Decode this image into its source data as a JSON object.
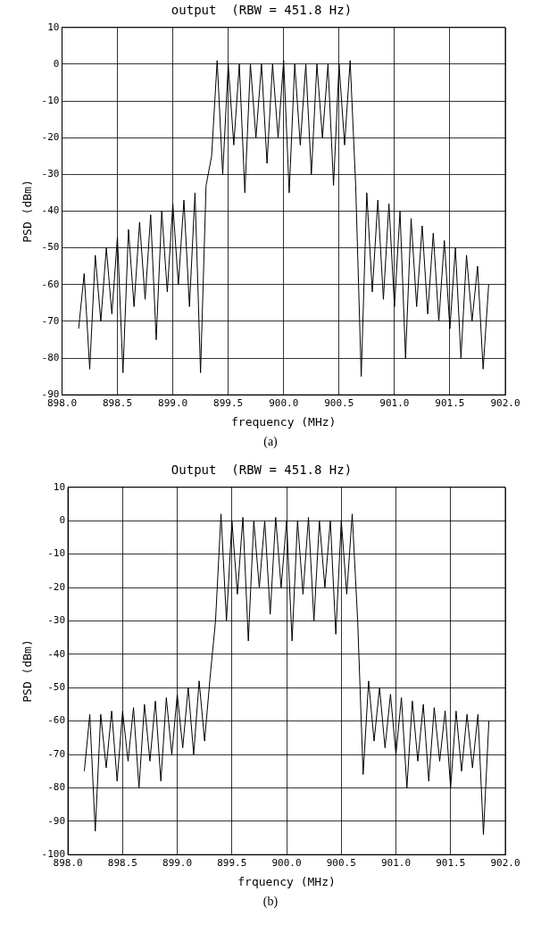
{
  "chart_data": [
    {
      "type": "line",
      "title": "output  (RBW = 451.8 Hz)",
      "xlabel": "frequency (MHz)",
      "ylabel": "PSD (dBm)",
      "annotations": [
        "(a)"
      ],
      "x": [
        898.15,
        898.2,
        898.25,
        898.3,
        898.35,
        898.4,
        898.45,
        898.5,
        898.55,
        898.6,
        898.65,
        898.7,
        898.75,
        898.8,
        898.85,
        898.9,
        898.95,
        899.0,
        899.05,
        899.1,
        899.15,
        899.2,
        899.25,
        899.3,
        899.35,
        899.4,
        899.45,
        899.5,
        899.55,
        899.6,
        899.65,
        899.7,
        899.75,
        899.8,
        899.85,
        899.9,
        899.95,
        900.0,
        900.05,
        900.1,
        900.15,
        900.2,
        900.25,
        900.3,
        900.35,
        900.4,
        900.45,
        900.5,
        900.55,
        900.6,
        900.65,
        900.7,
        900.75,
        900.8,
        900.85,
        900.9,
        900.95,
        901.0,
        901.05,
        901.1,
        901.15,
        901.2,
        901.25,
        901.3,
        901.35,
        901.4,
        901.45,
        901.5,
        901.55,
        901.6,
        901.65,
        901.7,
        901.75,
        901.8,
        901.85
      ],
      "series": [
        {
          "color": "#000000",
          "values": [
            -72,
            -57,
            -83,
            -52,
            -70,
            -50,
            -68,
            -47,
            -84,
            -45,
            -66,
            -43,
            -64,
            -41,
            -75,
            -40,
            -62,
            -38,
            -60,
            -37,
            -66,
            -35,
            -84,
            -33,
            -25,
            1,
            -30,
            0,
            -22,
            0,
            -35,
            0,
            -20,
            0,
            -27,
            0,
            -20,
            1,
            -35,
            0,
            -22,
            0,
            -30,
            0,
            -20,
            0,
            -33,
            0,
            -22,
            1,
            -33,
            -85,
            -35,
            -62,
            -37,
            -64,
            -38,
            -66,
            -40,
            -80,
            -42,
            -66,
            -44,
            -68,
            -46,
            -70,
            -48,
            -72,
            -50,
            -80,
            -52,
            -70,
            -55,
            -83,
            -60
          ]
        }
      ],
      "xlim": [
        898,
        902
      ],
      "xticks": [
        {
          "value": 898,
          "label": "898.0"
        },
        {
          "value": 898.5,
          "label": "898.5"
        },
        {
          "value": 899,
          "label": "899.0"
        },
        {
          "value": 899.5,
          "label": "899.5"
        },
        {
          "value": 900,
          "label": "900.0"
        },
        {
          "value": 900.5,
          "label": "900.5"
        },
        {
          "value": 901,
          "label": "901.0"
        },
        {
          "value": 901.5,
          "label": "901.5"
        },
        {
          "value": 902,
          "label": "902.0"
        }
      ],
      "ylim": [
        -90,
        10
      ],
      "yticks": [
        -90,
        -80,
        -70,
        -60,
        -50,
        -40,
        -30,
        -20,
        -10,
        0,
        10
      ],
      "grid": true,
      "marker": "none",
      "line_style": "solid"
    },
    {
      "type": "line",
      "title": "Output  (RBW = 451.8 Hz)",
      "xlabel": "frquency (MHz)",
      "ylabel": "PSD (dBm)",
      "annotations": [
        "(b)"
      ],
      "x": [
        898.15,
        898.2,
        898.25,
        898.3,
        898.35,
        898.4,
        898.45,
        898.5,
        898.55,
        898.6,
        898.65,
        898.7,
        898.75,
        898.8,
        898.85,
        898.9,
        898.95,
        899.0,
        899.05,
        899.1,
        899.15,
        899.2,
        899.25,
        899.3,
        899.35,
        899.4,
        899.45,
        899.5,
        899.55,
        899.6,
        899.65,
        899.7,
        899.75,
        899.8,
        899.85,
        899.9,
        899.95,
        900.0,
        900.05,
        900.1,
        900.15,
        900.2,
        900.25,
        900.3,
        900.35,
        900.4,
        900.45,
        900.5,
        900.55,
        900.6,
        900.65,
        900.7,
        900.75,
        900.8,
        900.85,
        900.9,
        900.95,
        901.0,
        901.05,
        901.1,
        901.15,
        901.2,
        901.25,
        901.3,
        901.35,
        901.4,
        901.45,
        901.5,
        901.55,
        901.6,
        901.65,
        901.7,
        901.75,
        901.8,
        901.85
      ],
      "series": [
        {
          "color": "#000000",
          "values": [
            -75,
            -58,
            -93,
            -58,
            -74,
            -57,
            -78,
            -57,
            -72,
            -56,
            -80,
            -55,
            -72,
            -54,
            -78,
            -53,
            -70,
            -52,
            -68,
            -50,
            -70,
            -48,
            -66,
            -47,
            -30,
            2,
            -30,
            0,
            -22,
            1,
            -36,
            0,
            -20,
            0,
            -28,
            1,
            -20,
            0,
            -36,
            0,
            -22,
            1,
            -30,
            0,
            -20,
            0,
            -34,
            0,
            -22,
            2,
            -30,
            -76,
            -48,
            -66,
            -50,
            -68,
            -52,
            -70,
            -53,
            -80,
            -54,
            -72,
            -55,
            -78,
            -56,
            -72,
            -57,
            -80,
            -57,
            -75,
            -58,
            -74,
            -58,
            -94,
            -60
          ]
        }
      ],
      "xlim": [
        898,
        902
      ],
      "xticks": [
        {
          "value": 898,
          "label": "898.0"
        },
        {
          "value": 898.5,
          "label": "898.5"
        },
        {
          "value": 899,
          "label": "899.0"
        },
        {
          "value": 899.5,
          "label": "899.5"
        },
        {
          "value": 900,
          "label": "900.0"
        },
        {
          "value": 900.5,
          "label": "900.5"
        },
        {
          "value": 901,
          "label": "901.0"
        },
        {
          "value": 901.5,
          "label": "901.5"
        },
        {
          "value": 902,
          "label": "902.0"
        }
      ],
      "ylim": [
        -100,
        10
      ],
      "yticks": [
        -100,
        -90,
        -80,
        -70,
        -60,
        -50,
        -40,
        -30,
        -20,
        -10,
        0,
        10
      ],
      "grid": true,
      "marker": "none",
      "line_style": "solid"
    }
  ]
}
